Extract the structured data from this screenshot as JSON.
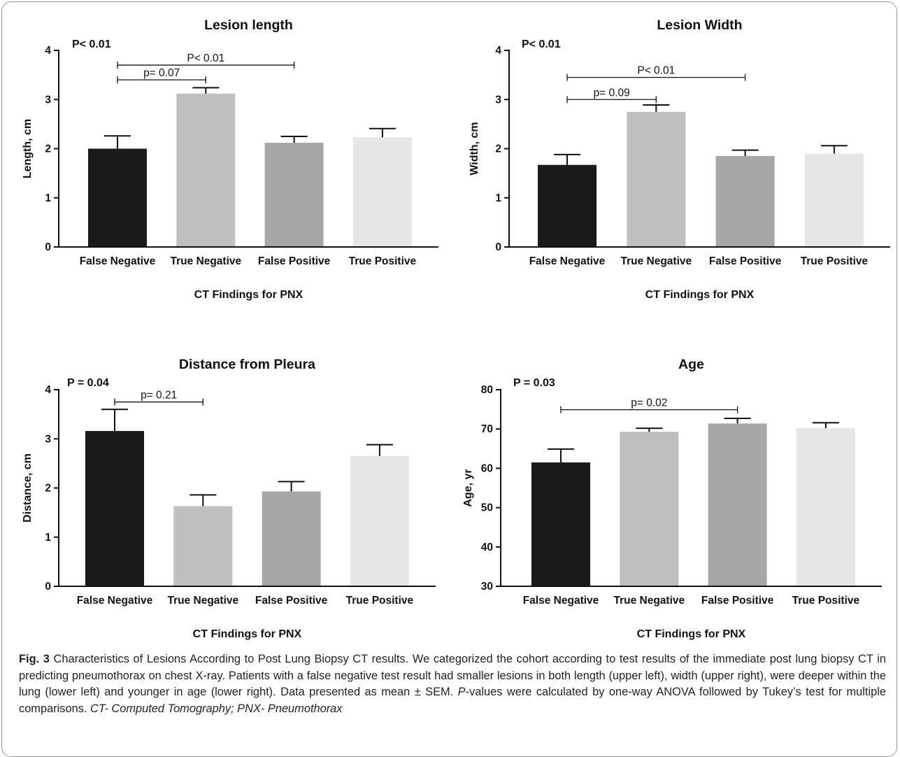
{
  "chart_data": [
    {
      "type": "bar",
      "title": "Lesion length",
      "xlabel": "CT Findings for PNX",
      "ylabel": "Length, cm",
      "categories": [
        "False Negative",
        "True Negative",
        "False Positive",
        "True Positive"
      ],
      "values": [
        2.0,
        3.12,
        2.12,
        2.23
      ],
      "errors": [
        0.26,
        0.12,
        0.13,
        0.18
      ],
      "ylim": [
        0,
        4
      ],
      "yticks": [
        0,
        1,
        2,
        3,
        4
      ],
      "colors": [
        "#1a1a1a",
        "#bfbfbf",
        "#a6a6a6",
        "#e6e6e6"
      ],
      "overall_p": "P< 0.01",
      "brackets": [
        {
          "from": 0,
          "to": 1,
          "label": "p= 0.07",
          "y": 3.4
        },
        {
          "from": 0,
          "to": 2,
          "label": "P< 0.01",
          "y": 3.7
        }
      ]
    },
    {
      "type": "bar",
      "title": "Lesion Width",
      "xlabel": "CT Findings for PNX",
      "ylabel": "Width, cm",
      "categories": [
        "False Negative",
        "True Negative",
        "False Positive",
        "True Positive"
      ],
      "values": [
        1.67,
        2.75,
        1.85,
        1.9
      ],
      "errors": [
        0.21,
        0.14,
        0.12,
        0.16
      ],
      "ylim": [
        0,
        4
      ],
      "yticks": [
        0,
        1,
        2,
        3,
        4
      ],
      "colors": [
        "#1a1a1a",
        "#bfbfbf",
        "#a6a6a6",
        "#e6e6e6"
      ],
      "overall_p": "P< 0.01",
      "brackets": [
        {
          "from": 0,
          "to": 1,
          "label": "p= 0.09",
          "y": 3.0
        },
        {
          "from": 0,
          "to": 2,
          "label": "P< 0.01",
          "y": 3.45
        }
      ]
    },
    {
      "type": "bar",
      "title": "Distance from Pleura",
      "xlabel": "CT Findings for PNX",
      "ylabel": "Distance, cm",
      "categories": [
        "False Negative",
        "True Negative",
        "False Positive",
        "True Positive"
      ],
      "values": [
        3.16,
        1.63,
        1.93,
        2.65
      ],
      "errors": [
        0.44,
        0.23,
        0.2,
        0.23
      ],
      "ylim": [
        0,
        4
      ],
      "yticks": [
        0,
        1,
        2,
        3,
        4
      ],
      "colors": [
        "#1a1a1a",
        "#bfbfbf",
        "#a6a6a6",
        "#e6e6e6"
      ],
      "overall_p": "P = 0.04",
      "brackets": [
        {
          "from": 0,
          "to": 1,
          "label": "p= 0.21",
          "y": 3.75
        }
      ]
    },
    {
      "type": "bar",
      "title": "Age",
      "xlabel": "CT Findings for PNX",
      "ylabel": "Age, yr",
      "categories": [
        "False Negative",
        "True Negative",
        "False Positive",
        "True Positive"
      ],
      "values": [
        61.5,
        69.3,
        71.4,
        70.2
      ],
      "errors": [
        3.4,
        0.9,
        1.3,
        1.4
      ],
      "ylim": [
        30,
        80
      ],
      "yticks": [
        30,
        40,
        50,
        60,
        70,
        80
      ],
      "colors": [
        "#1a1a1a",
        "#bfbfbf",
        "#a6a6a6",
        "#e6e6e6"
      ],
      "overall_p": "P = 0.03",
      "brackets": [
        {
          "from": 0,
          "to": 2,
          "label": "p= 0.02",
          "y": 74.9
        }
      ]
    }
  ],
  "caption": {
    "label": "Fig. 3",
    "text": " Characteristics of Lesions According to Post Lung Biopsy CT results. We categorized the cohort according to test results of the immediate post lung biopsy CT in predicting pneumothorax on chest X-ray. Patients with a false negative test result had smaller lesions in both length (upper left), width (upper right), were deeper within the lung (lower left) and younger in age (lower right). Data presented as mean ± SEM. ",
    "p_italic": "P",
    "tail": "-values were calculated by one-way ANOVA followed by Tukey’s test for multiple comparisons. ",
    "abbrev": "CT- Computed Tomography; PNX- Pneumothorax"
  }
}
